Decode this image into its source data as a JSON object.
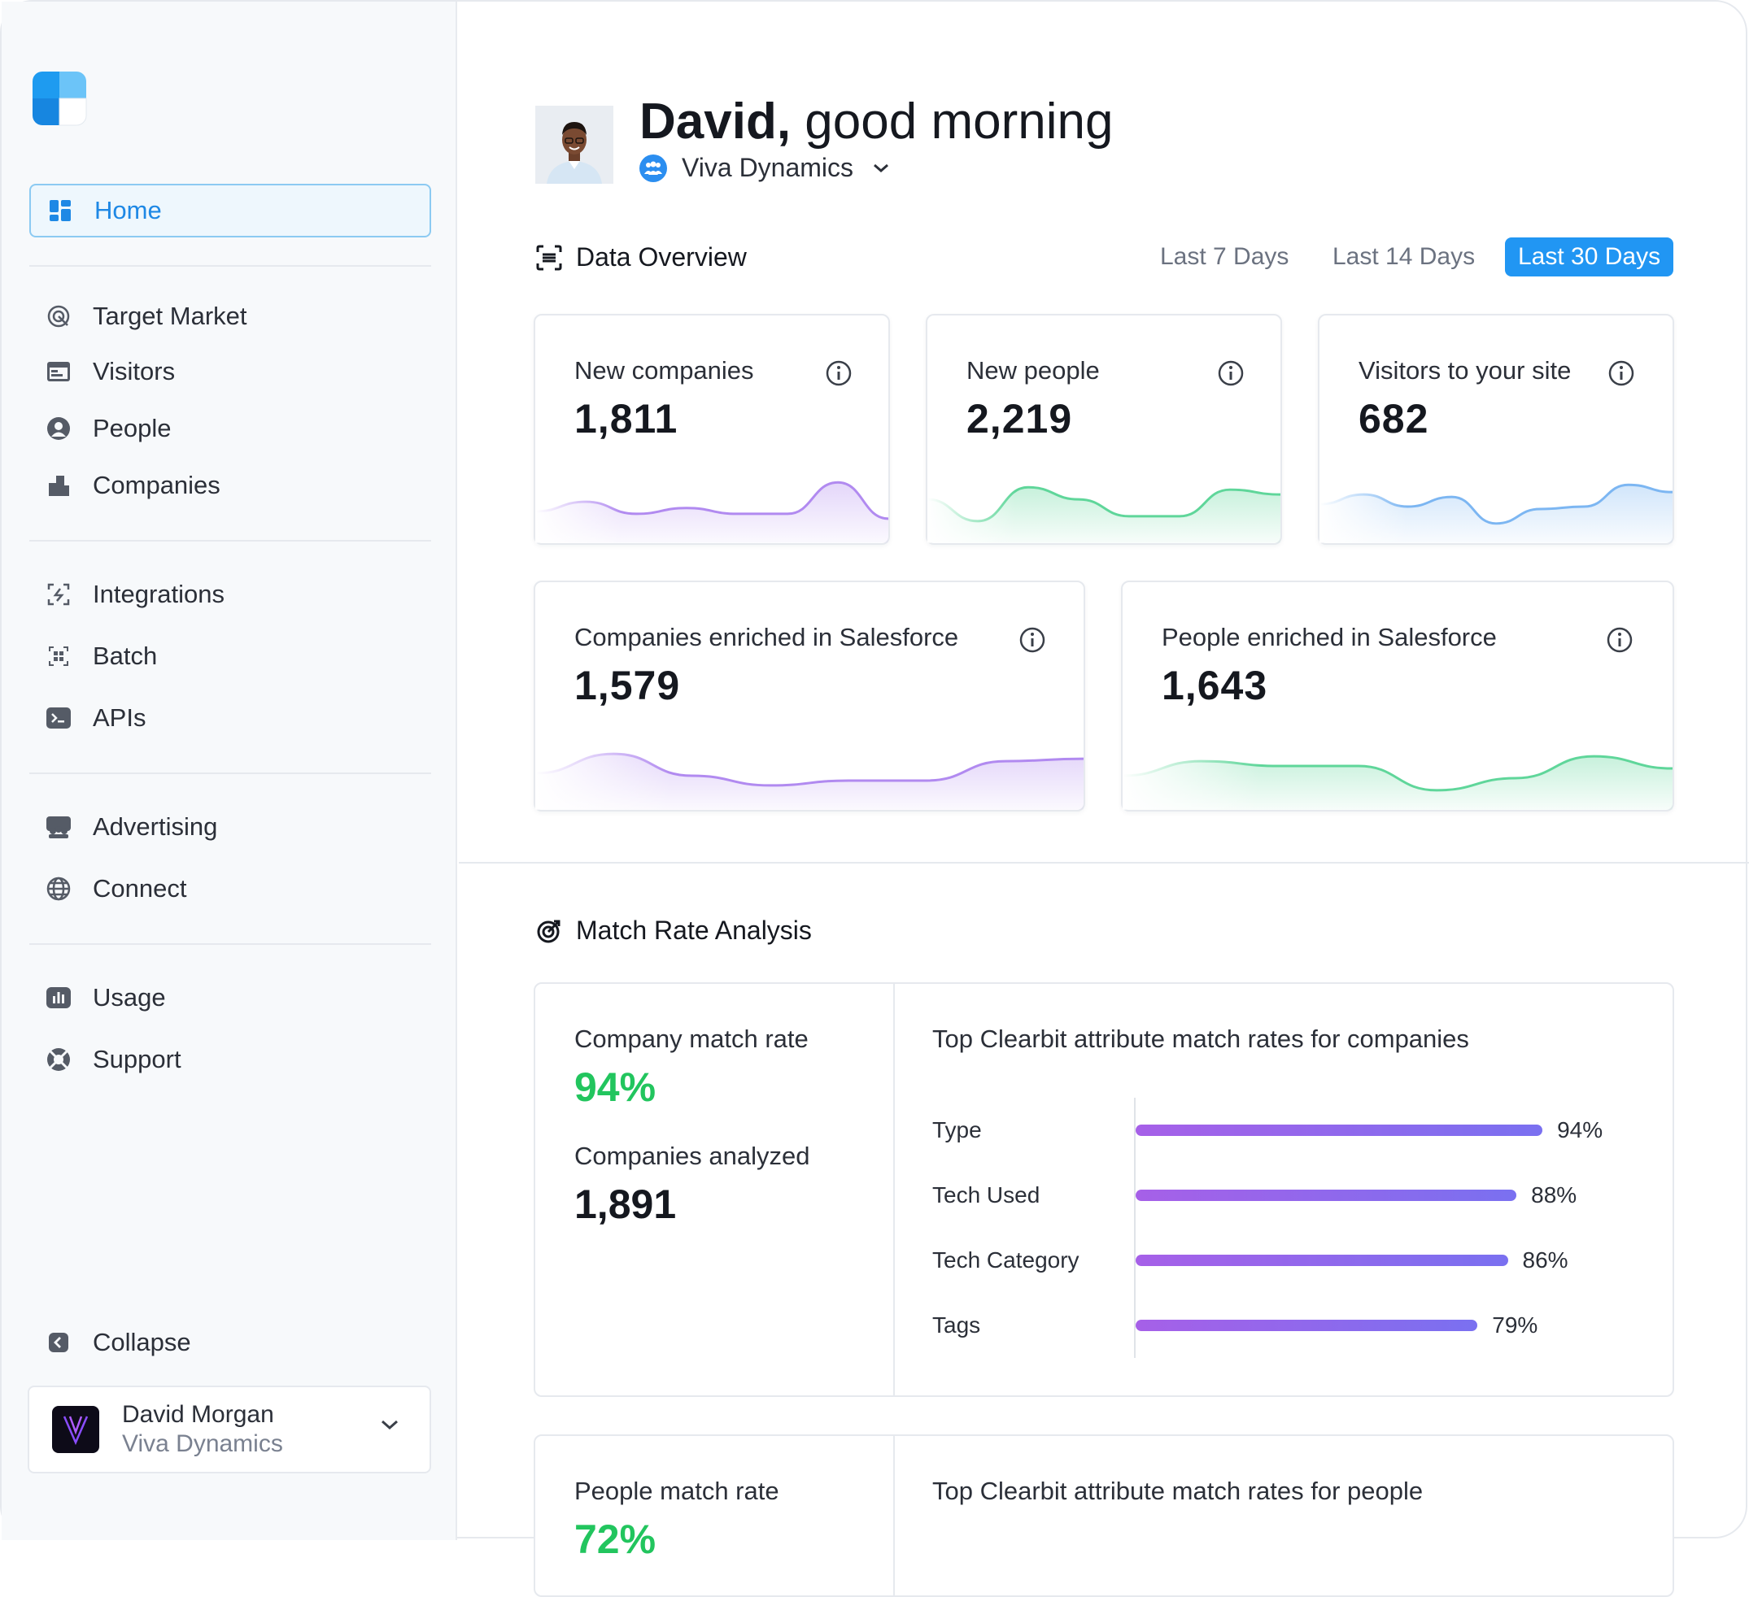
{
  "sidebar": {
    "items": [
      {
        "label": "Home",
        "icon": "dashboard-icon"
      },
      {
        "label": "Target Market",
        "icon": "target-market-icon"
      },
      {
        "label": "Visitors",
        "icon": "browser-window-icon"
      },
      {
        "label": "People",
        "icon": "person-icon"
      },
      {
        "label": "Companies",
        "icon": "buildings-icon"
      },
      {
        "label": "Integrations",
        "icon": "integrations-icon"
      },
      {
        "label": "Batch",
        "icon": "batch-icon"
      },
      {
        "label": "APIs",
        "icon": "terminal-icon"
      },
      {
        "label": "Advertising",
        "icon": "audience-icon"
      },
      {
        "label": "Connect",
        "icon": "globe-icon"
      },
      {
        "label": "Usage",
        "icon": "bar-chart-icon"
      },
      {
        "label": "Support",
        "icon": "lifebuoy-icon"
      }
    ],
    "collapse_label": "Collapse",
    "user": {
      "name": "David Morgan",
      "org": "Viva Dynamics"
    }
  },
  "header": {
    "greeting_name": "David,",
    "greeting_rest": " good morning",
    "org": "Viva Dynamics"
  },
  "overview": {
    "title": "Data Overview",
    "ranges": [
      "Last 7 Days",
      "Last 14 Days",
      "Last 30 Days"
    ],
    "active_range": "Last 30 Days",
    "cards": [
      {
        "label": "New companies",
        "value": "1,811",
        "color": "#b18af0",
        "trend": [
          0.35,
          0.55,
          0.3,
          0.42,
          0.3,
          0.3,
          0.95,
          0.2
        ]
      },
      {
        "label": "New people",
        "value": "2,219",
        "color": "#5fd69a",
        "trend": [
          0.6,
          0.15,
          0.85,
          0.6,
          0.25,
          0.25,
          0.8,
          0.7
        ]
      },
      {
        "label": "Visitors to your site",
        "value": "682",
        "color": "#7cb6f2",
        "trend": [
          0.5,
          0.7,
          0.45,
          0.65,
          0.1,
          0.4,
          0.45,
          0.9,
          0.75
        ]
      },
      {
        "label": "Companies enriched in Salesforce",
        "value": "1,579",
        "color": "#b18af0",
        "trend": [
          0.45,
          0.85,
          0.4,
          0.2,
          0.3,
          0.3,
          0.7,
          0.75
        ]
      },
      {
        "label": "People enriched in Salesforce",
        "value": "1,643",
        "color": "#5fd69a",
        "trend": [
          0.4,
          0.7,
          0.6,
          0.6,
          0.1,
          0.35,
          0.8,
          0.55
        ]
      }
    ]
  },
  "match": {
    "title": "Match Rate Analysis",
    "company": {
      "rate_label": "Company match rate",
      "rate_value": "94%",
      "analyzed_label": "Companies analyzed",
      "analyzed_value": "1,891",
      "chart_title": "Top Clearbit attribute match rates for companies"
    },
    "people": {
      "rate_label": "People match rate",
      "rate_value": "72%",
      "chart_title": "Top Clearbit attribute match rates for people"
    }
  },
  "chart_data": {
    "type": "bar",
    "orientation": "horizontal",
    "title": "Top Clearbit attribute match rates for companies",
    "categories": [
      "Type",
      "Tech Used",
      "Tech Category",
      "Tags"
    ],
    "values": [
      94,
      88,
      86,
      79
    ],
    "value_labels": [
      "94%",
      "88%",
      "86%",
      "79%"
    ],
    "xlim": [
      0,
      100
    ],
    "grid": false
  }
}
